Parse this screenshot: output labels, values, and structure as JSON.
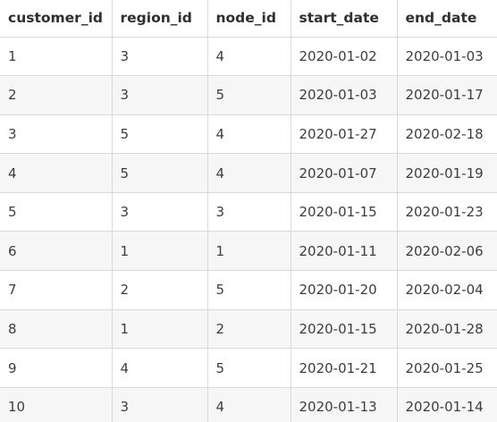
{
  "table": {
    "columns": [
      "customer_id",
      "region_id",
      "node_id",
      "start_date",
      "end_date"
    ],
    "rows": [
      [
        "1",
        "3",
        "4",
        "2020-01-02",
        "2020-01-03"
      ],
      [
        "2",
        "3",
        "5",
        "2020-01-03",
        "2020-01-17"
      ],
      [
        "3",
        "5",
        "4",
        "2020-01-27",
        "2020-02-18"
      ],
      [
        "4",
        "5",
        "4",
        "2020-01-07",
        "2020-01-19"
      ],
      [
        "5",
        "3",
        "3",
        "2020-01-15",
        "2020-01-23"
      ],
      [
        "6",
        "1",
        "1",
        "2020-01-11",
        "2020-02-06"
      ],
      [
        "7",
        "2",
        "5",
        "2020-01-20",
        "2020-02-04"
      ],
      [
        "8",
        "1",
        "2",
        "2020-01-15",
        "2020-01-28"
      ],
      [
        "9",
        "4",
        "5",
        "2020-01-21",
        "2020-01-25"
      ],
      [
        "10",
        "3",
        "4",
        "2020-01-13",
        "2020-01-14"
      ]
    ]
  }
}
